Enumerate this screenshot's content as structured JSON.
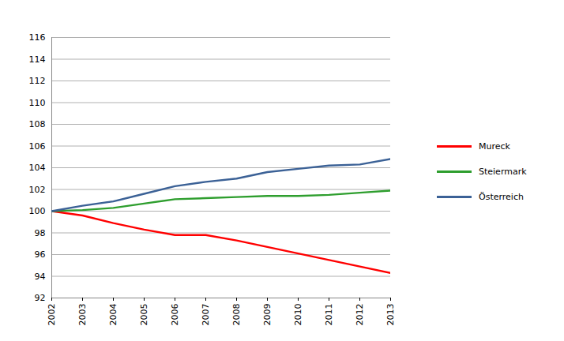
{
  "chart_data": {
    "type": "line",
    "x": [
      2002,
      2003,
      2004,
      2005,
      2006,
      2007,
      2008,
      2009,
      2010,
      2011,
      2012,
      2013
    ],
    "series": [
      {
        "name": "Mureck",
        "color": "#ff0000",
        "values": [
          100,
          99.6,
          98.9,
          98.3,
          97.8,
          97.8,
          97.3,
          96.7,
          96.1,
          95.5,
          94.9,
          94.3
        ]
      },
      {
        "name": "Steiermark",
        "color": "#2e9e2e",
        "values": [
          100,
          100.1,
          100.3,
          100.7,
          101.1,
          101.2,
          101.3,
          101.4,
          101.4,
          101.5,
          101.7,
          101.9
        ]
      },
      {
        "name": "Österreich",
        "color": "#3b6196",
        "values": [
          100,
          100.5,
          100.9,
          101.6,
          102.3,
          102.7,
          103.0,
          103.6,
          103.9,
          104.2,
          104.3,
          104.8
        ]
      }
    ],
    "xlim": [
      2002,
      2013
    ],
    "xticks": [
      2002,
      2003,
      2004,
      2005,
      2006,
      2007,
      2008,
      2009,
      2010,
      2011,
      2012,
      2013
    ],
    "ylim": [
      92,
      116
    ],
    "yticks": [
      92,
      94,
      96,
      98,
      100,
      102,
      104,
      106,
      108,
      110,
      112,
      114,
      116
    ],
    "grid": true,
    "legend": "right"
  }
}
